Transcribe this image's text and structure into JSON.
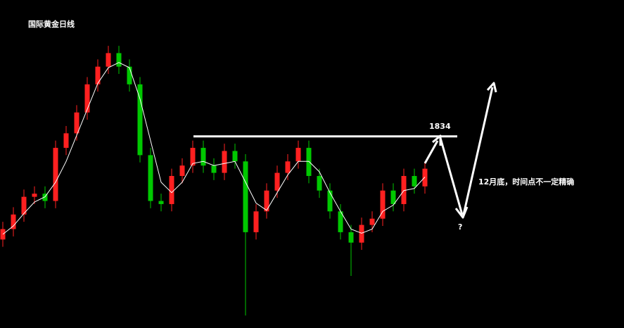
{
  "chart_data": {
    "type": "candlestick",
    "title": "国际黄金日线",
    "ylim": [
      1650,
      1965
    ],
    "up_color": "#ff2020",
    "down_color": "#00c800",
    "open": [
      1735,
      1745,
      1759,
      1776,
      1779,
      1772,
      1823,
      1837,
      1857,
      1884,
      1901,
      1914,
      1901,
      1884,
      1816,
      1772,
      1769,
      1796,
      1806,
      1823,
      1806,
      1799,
      1820,
      1810,
      1742,
      1762,
      1782,
      1799,
      1810,
      1823,
      1796,
      1782,
      1762,
      1742,
      1732,
      1749,
      1755,
      1782,
      1769,
      1796,
      1786
    ],
    "high": [
      1752,
      1766,
      1783,
      1786,
      1786,
      1830,
      1844,
      1864,
      1891,
      1908,
      1921,
      1921,
      1908,
      1891,
      1823,
      1779,
      1803,
      1813,
      1830,
      1830,
      1813,
      1827,
      1827,
      1817,
      1769,
      1789,
      1806,
      1817,
      1830,
      1830,
      1803,
      1789,
      1769,
      1749,
      1756,
      1762,
      1789,
      1789,
      1803,
      1803,
      1810
    ],
    "low": [
      1728,
      1738,
      1752,
      1769,
      1765,
      1765,
      1816,
      1830,
      1850,
      1877,
      1894,
      1894,
      1877,
      1809,
      1765,
      1762,
      1762,
      1789,
      1799,
      1799,
      1792,
      1792,
      1803,
      1662,
      1735,
      1755,
      1775,
      1792,
      1803,
      1789,
      1775,
      1755,
      1735,
      1700,
      1725,
      1742,
      1748,
      1762,
      1762,
      1779,
      1779
    ],
    "close": [
      1745,
      1759,
      1776,
      1779,
      1772,
      1823,
      1837,
      1857,
      1884,
      1901,
      1914,
      1901,
      1884,
      1816,
      1772,
      1769,
      1796,
      1806,
      1823,
      1806,
      1799,
      1820,
      1810,
      1742,
      1762,
      1782,
      1799,
      1810,
      1823,
      1796,
      1782,
      1762,
      1742,
      1732,
      1749,
      1755,
      1782,
      1769,
      1796,
      1786,
      1803
    ],
    "ma": {
      "color": "#ffffff",
      "values": [
        1740,
        1748,
        1760,
        1771,
        1776,
        1790,
        1810,
        1835,
        1860,
        1885,
        1900,
        1905,
        1900,
        1870,
        1830,
        1790,
        1780,
        1790,
        1808,
        1810,
        1806,
        1808,
        1810,
        1790,
        1770,
        1763,
        1780,
        1797,
        1810,
        1810,
        1800,
        1780,
        1762,
        1745,
        1741,
        1745,
        1762,
        1768,
        1782,
        1784,
        1795
      ]
    },
    "level": 1834,
    "note": "12月底，时间点不一定精确",
    "question": "?"
  }
}
